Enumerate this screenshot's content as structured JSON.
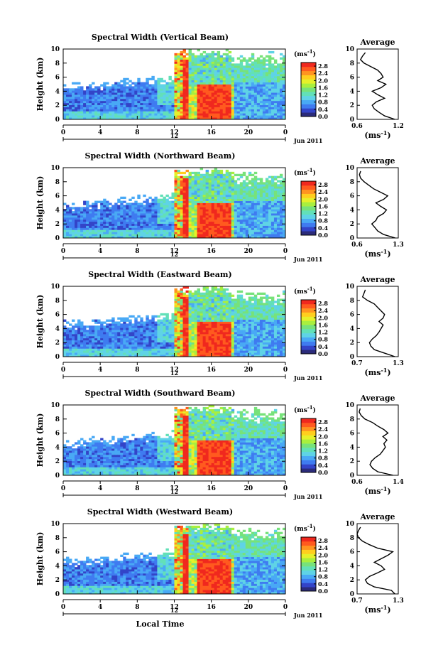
{
  "figure": {
    "xlabel": "Local Time",
    "date_label": "Jun 2011",
    "marker_label": "12",
    "cbar_unit": "(ms",
    "cbar_unit_exp": "-1",
    "cbar_unit_close": ")",
    "avg_title": "Average",
    "avg_ylabel": "Height (km)"
  },
  "colors": {
    "scale": [
      "#2b2b7a",
      "#3344c8",
      "#3f7bf0",
      "#49a9f5",
      "#5fd3e6",
      "#62e0b8",
      "#77e27a",
      "#a9ef3e",
      "#e6f02a",
      "#ffce1e",
      "#ff9420",
      "#ff5a1f",
      "#f0281e"
    ]
  },
  "chart_data": [
    {
      "type": "heatmap",
      "title": "Spectral Width (Vertical Beam)",
      "ylabel": "Height (km)",
      "x_ticks": [
        "0",
        "4",
        "8",
        "12",
        "16",
        "20",
        "0"
      ],
      "xlim": [
        0,
        24
      ],
      "y_ticks": [
        "0",
        "2",
        "4",
        "6",
        "8",
        "10"
      ],
      "ylim": [
        0,
        10
      ],
      "colorbar_ticks": [
        "0.0",
        "0.4",
        "0.8",
        "1.2",
        "1.6",
        "2.0",
        "2.4",
        "2.8"
      ],
      "colorbar_range": [
        0.0,
        3.0
      ],
      "profile": {
        "title": "Average",
        "x_ticks": [
          "0.6",
          "1.2"
        ],
        "xlim": [
          0.6,
          1.2
        ],
        "heights": [
          0,
          0.5,
          1,
          1.5,
          2,
          2.5,
          3,
          3.5,
          4,
          4.5,
          5,
          5.5,
          6,
          6.5,
          7,
          7.5,
          8,
          8.5,
          9,
          9.5
        ],
        "values": [
          1.15,
          1.0,
          0.92,
          0.85,
          0.82,
          0.88,
          1.0,
          0.9,
          0.82,
          0.95,
          1.02,
          0.9,
          0.98,
          0.95,
          0.9,
          0.8,
          0.7,
          0.65,
          0.68,
          0.72
        ]
      }
    },
    {
      "type": "heatmap",
      "title": "Spectral Width (Northward Beam)",
      "ylabel": "Height (km)",
      "x_ticks": [
        "0",
        "4",
        "8",
        "12",
        "16",
        "20",
        "0"
      ],
      "xlim": [
        0,
        24
      ],
      "y_ticks": [
        "0",
        "2",
        "4",
        "6",
        "8",
        "10"
      ],
      "ylim": [
        0,
        10
      ],
      "colorbar_ticks": [
        "0.0",
        "0.4",
        "0.8",
        "1.2",
        "1.6",
        "2.0",
        "2.4",
        "2.8"
      ],
      "colorbar_range": [
        0.0,
        3.0
      ],
      "profile": {
        "title": "Average",
        "x_ticks": [
          "0.6",
          "1.3"
        ],
        "xlim": [
          0.6,
          1.3
        ],
        "heights": [
          0,
          0.5,
          1,
          1.5,
          2,
          2.5,
          3,
          3.5,
          4,
          4.5,
          5,
          5.5,
          6,
          6.5,
          7,
          7.5,
          8,
          8.5,
          9,
          9.5
        ],
        "values": [
          1.25,
          1.05,
          0.95,
          0.9,
          0.85,
          0.92,
          0.95,
          1.05,
          1.1,
          1.0,
          0.92,
          1.05,
          1.12,
          1.0,
          0.88,
          0.8,
          0.72,
          0.66,
          0.64,
          0.66
        ]
      }
    },
    {
      "type": "heatmap",
      "title": "Spectral Width (Eastward Beam)",
      "ylabel": "Height (km)",
      "x_ticks": [
        "0",
        "4",
        "8",
        "12",
        "16",
        "20",
        "0"
      ],
      "xlim": [
        0,
        24
      ],
      "y_ticks": [
        "0",
        "2",
        "4",
        "6",
        "8",
        "10"
      ],
      "ylim": [
        0,
        10
      ],
      "colorbar_ticks": [
        "0.0",
        "0.4",
        "0.8",
        "1.2",
        "1.6",
        "2.0",
        "2.4",
        "2.8"
      ],
      "colorbar_range": [
        0.0,
        3.0
      ],
      "profile": {
        "title": "Average",
        "x_ticks": [
          "0.7",
          "1.3"
        ],
        "xlim": [
          0.7,
          1.3
        ],
        "heights": [
          0,
          0.5,
          1,
          1.5,
          2,
          2.5,
          3,
          3.5,
          4,
          4.5,
          5,
          5.5,
          6,
          6.5,
          7,
          7.5,
          8,
          8.5,
          9,
          9.5
        ],
        "values": [
          1.25,
          1.1,
          0.95,
          0.9,
          0.88,
          0.92,
          0.98,
          1.02,
          1.05,
          1.08,
          1.02,
          1.08,
          1.1,
          1.05,
          1.0,
          0.95,
          0.85,
          0.78,
          0.8,
          0.82
        ]
      }
    },
    {
      "type": "heatmap",
      "title": "Spectral Width (Southward Beam)",
      "ylabel": "Height (km)",
      "x_ticks": [
        "0",
        "4",
        "8",
        "12",
        "16",
        "20",
        "0"
      ],
      "xlim": [
        0,
        24
      ],
      "y_ticks": [
        "0",
        "2",
        "4",
        "6",
        "8",
        "10"
      ],
      "ylim": [
        0,
        10
      ],
      "colorbar_ticks": [
        "0.0",
        "0.4",
        "0.8",
        "1.2",
        "1.6",
        "2.0",
        "2.4",
        "2.8"
      ],
      "colorbar_range": [
        0.0,
        3.0
      ],
      "profile": {
        "title": "Average",
        "x_ticks": [
          "0.6",
          "1.4"
        ],
        "xlim": [
          0.6,
          1.4
        ],
        "heights": [
          0,
          0.5,
          1,
          1.5,
          2,
          2.5,
          3,
          3.5,
          4,
          4.5,
          5,
          5.5,
          6,
          6.5,
          7,
          7.5,
          8,
          8.5,
          9,
          9.5
        ],
        "values": [
          1.3,
          1.0,
          0.9,
          0.85,
          0.88,
          0.95,
          1.05,
          1.1,
          1.15,
          1.12,
          1.18,
          1.1,
          1.2,
          1.12,
          1.0,
          0.9,
          0.75,
          0.68,
          0.64,
          0.66
        ]
      }
    },
    {
      "type": "heatmap",
      "title": "Spectral Width (Westward Beam)",
      "ylabel": "Height (km)",
      "x_ticks": [
        "0",
        "4",
        "8",
        "12",
        "16",
        "20",
        "0"
      ],
      "xlim": [
        0,
        24
      ],
      "y_ticks": [
        "0",
        "2",
        "4",
        "6",
        "8",
        "10"
      ],
      "ylim": [
        0,
        10
      ],
      "colorbar_ticks": [
        "0.0",
        "0.4",
        "0.8",
        "1.2",
        "1.6",
        "2.0",
        "2.4",
        "2.8"
      ],
      "colorbar_range": [
        0.0,
        3.0
      ],
      "profile": {
        "title": "Average",
        "x_ticks": [
          "0.7",
          "1.3"
        ],
        "xlim": [
          0.7,
          1.3
        ],
        "heights": [
          0,
          0.5,
          1,
          1.5,
          2,
          2.5,
          3,
          3.5,
          4,
          4.5,
          5,
          5.5,
          6,
          6.5,
          7,
          7.5,
          8,
          8.5,
          9,
          9.5
        ],
        "values": [
          1.25,
          1.2,
          0.95,
          0.85,
          0.82,
          0.88,
          1.0,
          1.1,
          1.05,
          0.95,
          1.05,
          1.15,
          1.22,
          1.0,
          0.88,
          0.78,
          0.72,
          0.7,
          0.72,
          0.75
        ]
      }
    }
  ]
}
